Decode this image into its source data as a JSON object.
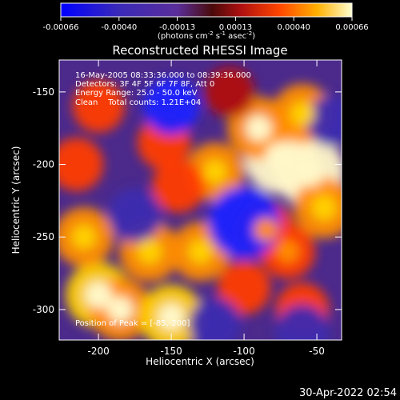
{
  "colorbar": {
    "ticks": [
      "-0.00066",
      "-0.00040",
      "-0.00013",
      "0.00013",
      "0.00040",
      "0.00066"
    ],
    "units_prefix": "(photons cm",
    "units_sup1": "-2",
    "units_mid": " s",
    "units_sup2": "-1",
    "units_mid2": " asec",
    "units_sup3": "-2",
    "units_suffix": ")"
  },
  "title": "Reconstructed RHESSI Image",
  "annotations": {
    "time_range": "16-May-2005 08:33:36.000 to 08:39:36.000",
    "detectors": "Detectors: 3F 4F 5F 6F 7F 8F, Att 0",
    "energy": "Energy Range: 25.0 - 50.0 keV",
    "method": "Clean    Total counts: 1.21E+04",
    "peak": "Position of Peak = [-85,-200]"
  },
  "footer_date": "30-Apr-2022 02:54",
  "chart_data": {
    "type": "heatmap",
    "title": "Reconstructed RHESSI Image",
    "xlabel": "Heliocentric X (arcsec)",
    "ylabel": "Heliocentric Y (arcsec)",
    "xlim": [
      -227,
      -33
    ],
    "ylim": [
      -321,
      -128
    ],
    "xticks": [
      -200,
      -150,
      -100,
      -50
    ],
    "yticks": [
      -150,
      -200,
      -250,
      -300
    ],
    "colorbar_range": [
      -0.00066,
      0.00066
    ],
    "colormap": "blue-purple-red-yellow-white",
    "peak_position": [
      -85,
      -200
    ],
    "blobs": [
      {
        "x": -75,
        "y": -195,
        "v": 0.00062
      },
      {
        "x": -55,
        "y": -205,
        "v": 0.00058
      },
      {
        "x": -90,
        "y": -175,
        "v": 0.00045
      },
      {
        "x": -60,
        "y": -165,
        "v": 0.0004
      },
      {
        "x": -45,
        "y": -230,
        "v": 0.00042
      },
      {
        "x": -200,
        "y": -290,
        "v": 0.0005
      },
      {
        "x": -185,
        "y": -300,
        "v": 0.00045
      },
      {
        "x": -150,
        "y": -305,
        "v": 0.00048
      },
      {
        "x": -210,
        "y": -250,
        "v": 0.0004
      },
      {
        "x": -165,
        "y": -260,
        "v": 0.00042
      },
      {
        "x": -130,
        "y": -260,
        "v": 0.0004
      },
      {
        "x": -85,
        "y": -245,
        "v": 0.00035
      },
      {
        "x": -70,
        "y": -260,
        "v": 0.00032
      },
      {
        "x": -120,
        "y": -205,
        "v": 0.00038
      },
      {
        "x": -145,
        "y": -215,
        "v": 0.0003
      },
      {
        "x": -155,
        "y": -185,
        "v": 0.0003
      },
      {
        "x": -215,
        "y": -200,
        "v": 0.0003
      },
      {
        "x": -110,
        "y": -150,
        "v": 0.00025
      },
      {
        "x": -200,
        "y": -160,
        "v": 0.00028
      },
      {
        "x": -100,
        "y": -285,
        "v": 0.0003
      },
      {
        "x": -60,
        "y": -300,
        "v": 0.0003
      },
      {
        "x": -100,
        "y": -240,
        "v": -0.0006
      },
      {
        "x": -150,
        "y": -160,
        "v": -0.00035
      },
      {
        "x": -175,
        "y": -235,
        "v": -0.0003
      },
      {
        "x": -60,
        "y": -315,
        "v": -0.0003
      },
      {
        "x": -120,
        "y": -310,
        "v": -0.00028
      },
      {
        "x": -40,
        "y": -170,
        "v": -0.00025
      }
    ]
  }
}
